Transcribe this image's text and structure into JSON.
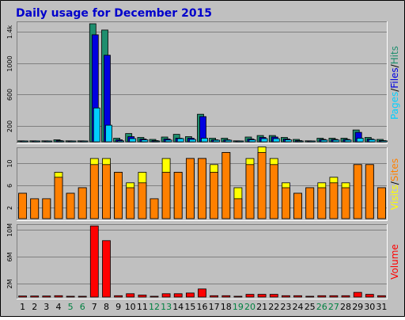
{
  "title": "Daily usage for December 2015",
  "colors": {
    "background": "#c0c0c0",
    "hits": "#1f8e6e",
    "files": "#0000e0",
    "pages": "#00d0ff",
    "visits": "#ffff00",
    "sites": "#ff8000",
    "volume": "#ff0000",
    "title": "#0000cc",
    "weekend_label": "#008040",
    "weekday_label": "#000000"
  },
  "chart_data": [
    {
      "type": "bar",
      "panel": "hits-files-pages",
      "categories": [
        "1",
        "2",
        "3",
        "4",
        "5",
        "6",
        "7",
        "8",
        "9",
        "10",
        "11",
        "12",
        "13",
        "14",
        "15",
        "16",
        "17",
        "18",
        "19",
        "20",
        "21",
        "22",
        "23",
        "24",
        "25",
        "26",
        "27",
        "28",
        "29",
        "30",
        "31"
      ],
      "weekend_days": [
        "5",
        "6",
        "12",
        "13",
        "19",
        "20",
        "26",
        "27"
      ],
      "yticks": [
        200,
        600,
        1000,
        1400
      ],
      "ytick_labels": [
        "200",
        "600",
        "1000",
        "1.4k"
      ],
      "ylim": [
        0,
        1500
      ],
      "series": [
        {
          "name": "Hits",
          "values": [
            12,
            12,
            12,
            25,
            12,
            12,
            1500,
            1420,
            45,
            105,
            55,
            30,
            60,
            95,
            65,
            350,
            45,
            45,
            12,
            60,
            80,
            80,
            55,
            30,
            12,
            45,
            45,
            45,
            150,
            55,
            30
          ]
        },
        {
          "name": "Files",
          "values": [
            8,
            8,
            8,
            15,
            8,
            8,
            1360,
            1100,
            25,
            65,
            35,
            15,
            35,
            45,
            45,
            320,
            25,
            25,
            6,
            35,
            55,
            60,
            35,
            15,
            6,
            30,
            30,
            30,
            120,
            35,
            15
          ]
        },
        {
          "name": "Pages",
          "values": [
            5,
            5,
            5,
            8,
            5,
            5,
            430,
            210,
            12,
            40,
            25,
            8,
            22,
            40,
            30,
            45,
            20,
            20,
            4,
            25,
            40,
            40,
            25,
            8,
            4,
            22,
            22,
            22,
            45,
            28,
            12
          ]
        }
      ],
      "side_label": [
        {
          "text": "Pages",
          "color_key": "pages"
        },
        {
          "text": "/",
          "color_key": "weekday_label"
        },
        {
          "text": "Files",
          "color_key": "files"
        },
        {
          "text": "/",
          "color_key": "weekday_label"
        },
        {
          "text": "Hits",
          "color_key": "hits"
        }
      ]
    },
    {
      "type": "bar",
      "panel": "visits-sites",
      "categories": [
        "1",
        "2",
        "3",
        "4",
        "5",
        "6",
        "7",
        "8",
        "9",
        "10",
        "11",
        "12",
        "13",
        "14",
        "15",
        "16",
        "17",
        "18",
        "19",
        "20",
        "21",
        "22",
        "23",
        "24",
        "25",
        "26",
        "27",
        "28",
        "29",
        "30",
        "31"
      ],
      "yticks": [
        2,
        6,
        10
      ],
      "ytick_labels": [
        "2",
        "6",
        "10"
      ],
      "ylim": [
        0,
        12.5
      ],
      "series": [
        {
          "name": "Visits",
          "values": [
            4.6,
            3.6,
            3.6,
            8.4,
            4.6,
            5.6,
            10.9,
            10.9,
            8.4,
            6.5,
            8.4,
            3.6,
            10.9,
            8.4,
            10.9,
            10.9,
            9.8,
            12.0,
            5.6,
            10.9,
            13.0,
            10.9,
            6.5,
            4.6,
            5.6,
            6.5,
            7.5,
            6.5,
            9.8,
            9.8,
            5.6
          ]
        },
        {
          "name": "Sites",
          "values": [
            4.6,
            3.6,
            3.6,
            7.5,
            4.6,
            5.6,
            9.8,
            9.8,
            8.4,
            5.6,
            6.5,
            3.6,
            8.4,
            8.4,
            10.9,
            10.9,
            8.4,
            12.0,
            3.6,
            9.8,
            12.0,
            9.8,
            5.6,
            4.6,
            5.6,
            5.6,
            6.5,
            5.6,
            9.8,
            9.8,
            5.6
          ]
        }
      ],
      "side_label": [
        {
          "text": "Visits",
          "color_key": "visits"
        },
        {
          "text": "/",
          "color_key": "weekday_label"
        },
        {
          "text": "Sites",
          "color_key": "sites"
        }
      ]
    },
    {
      "type": "bar",
      "panel": "volume",
      "categories": [
        "1",
        "2",
        "3",
        "4",
        "5",
        "6",
        "7",
        "8",
        "9",
        "10",
        "11",
        "12",
        "13",
        "14",
        "15",
        "16",
        "17",
        "18",
        "19",
        "20",
        "21",
        "22",
        "23",
        "24",
        "25",
        "26",
        "27",
        "28",
        "29",
        "30",
        "31"
      ],
      "yticks": [
        2,
        6,
        10
      ],
      "ytick_labels": [
        "2M",
        "6M",
        "10M"
      ],
      "ylim": [
        0,
        10.5
      ],
      "series": [
        {
          "name": "Volume",
          "values": [
            0.15,
            0.15,
            0.15,
            0.2,
            0.1,
            0.1,
            10.6,
            8.4,
            0.2,
            0.5,
            0.3,
            0.1,
            0.5,
            0.5,
            0.6,
            1.2,
            0.2,
            0.2,
            0.1,
            0.4,
            0.4,
            0.4,
            0.2,
            0.2,
            0.1,
            0.2,
            0.2,
            0.2,
            0.7,
            0.4,
            0.2
          ]
        }
      ],
      "side_label": [
        {
          "text": "Volume",
          "color_key": "volume"
        }
      ]
    }
  ]
}
